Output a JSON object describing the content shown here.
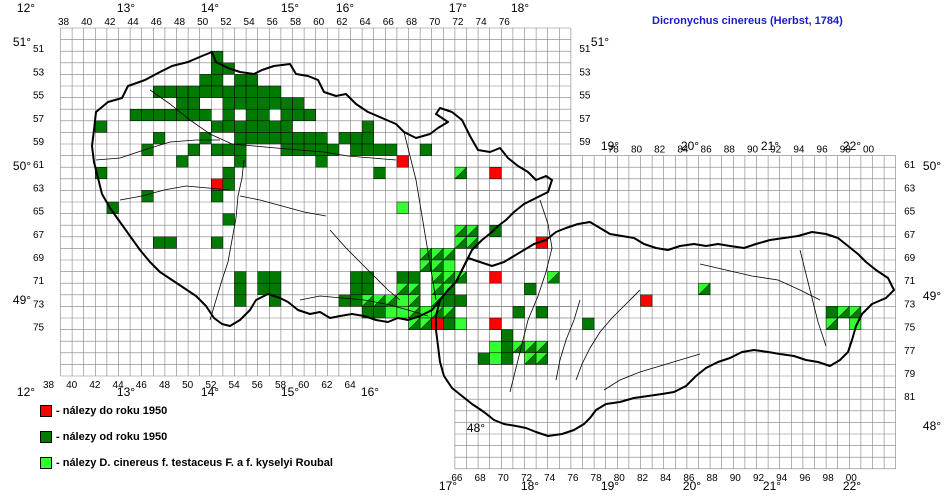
{
  "title": "Dicronychus cinereus (Herbst, 1784)",
  "colors": {
    "before1950": "#ff0000",
    "after1950": "#007a00",
    "testaceus": "#33ff33",
    "grid": "#808080",
    "border": "#000000",
    "title": "#1a1acc"
  },
  "legend": [
    {
      "key": "before1950",
      "label": "- nálezy do roku 1950"
    },
    {
      "key": "after1950",
      "label": "- nálezy od roku 1950"
    },
    {
      "key": "testaceus",
      "label": "- nálezy D. cinereus f. testaceus F. a f. kyselyi Roubal"
    }
  ],
  "longitude_labels": [
    "12°",
    "13°",
    "14°",
    "15°",
    "16°",
    "17°",
    "18°",
    "19°",
    "20°",
    "21°",
    "22°"
  ],
  "latitude_labels": [
    "51°",
    "50°",
    "49°",
    "48°"
  ],
  "grid_column_labels_top_west": [
    "38",
    "40",
    "42",
    "44",
    "46",
    "48",
    "50",
    "52",
    "54",
    "56",
    "58",
    "60",
    "62",
    "64",
    "66",
    "68",
    "70",
    "72",
    "74",
    "76"
  ],
  "grid_column_labels_top_east": [
    "78",
    "80",
    "82",
    "84",
    "86",
    "88",
    "90",
    "92",
    "94",
    "96",
    "98",
    "00"
  ],
  "grid_column_labels_bottom_west": [
    "38",
    "40",
    "42",
    "44",
    "46",
    "48",
    "50",
    "52",
    "54",
    "56",
    "58",
    "60",
    "62",
    "64"
  ],
  "grid_column_labels_bottom_east": [
    "66",
    "68",
    "70",
    "72",
    "74",
    "76",
    "78",
    "80",
    "82",
    "84",
    "86",
    "88",
    "90",
    "92",
    "94",
    "96",
    "98",
    "00"
  ],
  "grid_row_labels_west": [
    "51",
    "53",
    "55",
    "57",
    "59",
    "61",
    "63",
    "65",
    "67",
    "69",
    "71",
    "73",
    "75"
  ],
  "grid_row_labels_east": [
    "51",
    "53",
    "55",
    "57",
    "59",
    "61",
    "63",
    "65",
    "67",
    "69",
    "71",
    "73",
    "75",
    "77",
    "79",
    "81"
  ]
}
